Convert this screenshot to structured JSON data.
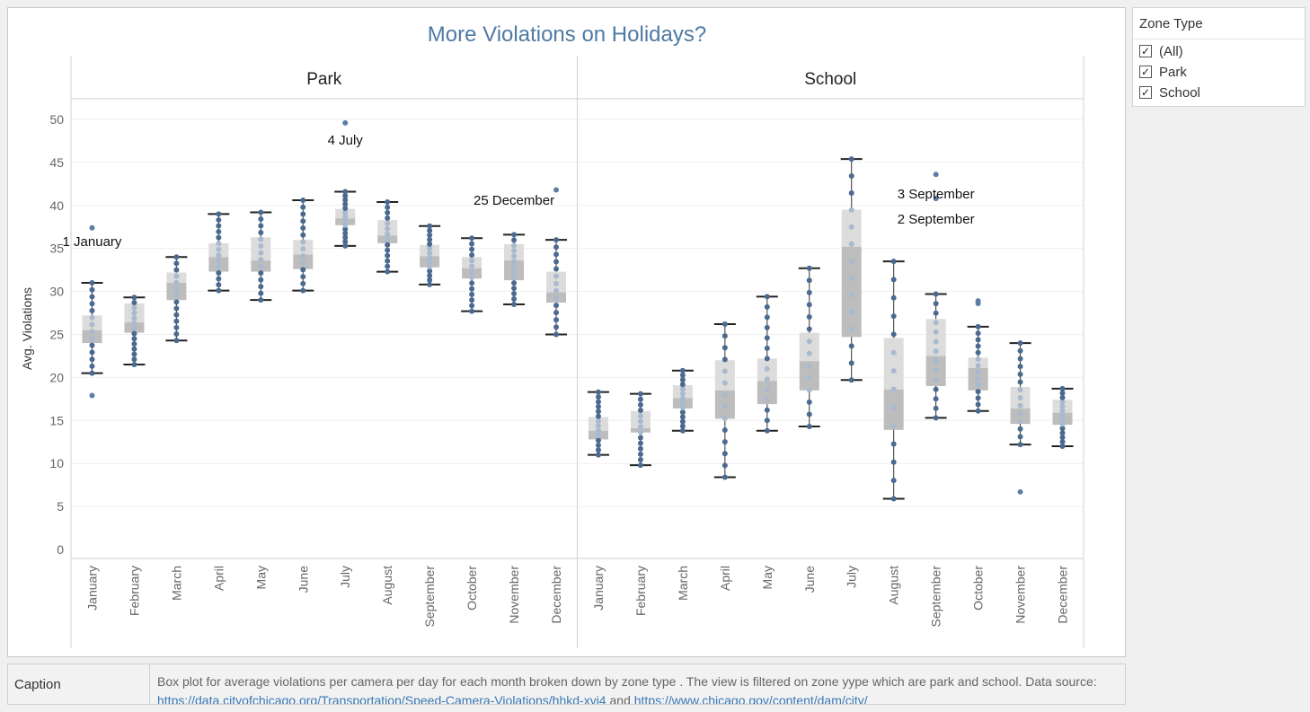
{
  "filter": {
    "title": "Zone Type",
    "options": [
      {
        "label": "(All)",
        "checked": true
      },
      {
        "label": "Park",
        "checked": true
      },
      {
        "label": "School",
        "checked": true
      }
    ]
  },
  "caption": {
    "label": "Caption",
    "text_1": "Box plot for average violations per camera per day for each month broken down by zone type . The view is filtered on zone yype which are park and school. Data source:",
    "link_1": "https://data.cityofchicago.org/Transportation/Speed-Camera-Violations/hhkd-xvj4",
    "text_2": "and",
    "link_2": "https://www.chicago.gov/content/dam/city/"
  },
  "colors": {
    "title": "#4f7aa3",
    "dot": "#4b6a8f",
    "dot_light": "#a9b9cf",
    "box_upper": "#dcdcdc",
    "box_lower": "#bdbdbd",
    "outlier": "#5d7fa6"
  },
  "chart_data": {
    "type": "box",
    "title": "More Violations on Holidays?",
    "ylabel": "Avg. Violations",
    "xlabel": "",
    "ylim": [
      0,
      52
    ],
    "yticks": [
      0,
      5,
      10,
      15,
      20,
      25,
      30,
      35,
      40,
      45,
      50
    ],
    "grid": true,
    "categories": [
      "January",
      "February",
      "March",
      "April",
      "May",
      "June",
      "July",
      "August",
      "September",
      "October",
      "November",
      "December"
    ],
    "panels": [
      {
        "name": "Park",
        "boxes": [
          {
            "min": 20.5,
            "q1": 24.0,
            "median": 25.5,
            "q3": 27.2,
            "max": 31.0
          },
          {
            "min": 21.5,
            "q1": 25.2,
            "median": 26.4,
            "q3": 28.6,
            "max": 29.3
          },
          {
            "min": 24.3,
            "q1": 29.0,
            "median": 31.0,
            "q3": 32.2,
            "max": 34.0
          },
          {
            "min": 30.1,
            "q1": 32.3,
            "median": 34.0,
            "q3": 35.6,
            "max": 39.0
          },
          {
            "min": 29.0,
            "q1": 32.3,
            "median": 33.6,
            "q3": 36.3,
            "max": 39.2
          },
          {
            "min": 30.1,
            "q1": 32.6,
            "median": 34.3,
            "q3": 36.0,
            "max": 40.6
          },
          {
            "min": 35.3,
            "q1": 37.7,
            "median": 38.5,
            "q3": 39.6,
            "max": 41.6
          },
          {
            "min": 32.3,
            "q1": 35.6,
            "median": 36.5,
            "q3": 38.3,
            "max": 40.4
          },
          {
            "min": 30.8,
            "q1": 32.8,
            "median": 34.1,
            "q3": 35.4,
            "max": 37.6
          },
          {
            "min": 27.7,
            "q1": 31.5,
            "median": 32.7,
            "q3": 34.0,
            "max": 36.2
          },
          {
            "min": 28.5,
            "q1": 31.3,
            "median": 33.6,
            "q3": 35.5,
            "max": 36.6
          },
          {
            "min": 25.0,
            "q1": 28.7,
            "median": 29.9,
            "q3": 32.3,
            "max": 36.0
          }
        ],
        "outliers": [
          {
            "month": "January",
            "y": 37.4
          },
          {
            "month": "January",
            "y": 17.9
          },
          {
            "month": "July",
            "y": 49.6
          },
          {
            "month": "December",
            "y": 41.8
          }
        ]
      },
      {
        "name": "School",
        "boxes": [
          {
            "min": 11.0,
            "q1": 12.8,
            "median": 13.8,
            "q3": 15.4,
            "max": 18.3
          },
          {
            "min": 9.8,
            "q1": 13.6,
            "median": 14.1,
            "q3": 16.1,
            "max": 18.1
          },
          {
            "min": 13.8,
            "q1": 16.4,
            "median": 17.6,
            "q3": 19.1,
            "max": 20.8
          },
          {
            "min": 8.4,
            "q1": 15.2,
            "median": 18.5,
            "q3": 22.0,
            "max": 26.2
          },
          {
            "min": 13.8,
            "q1": 16.9,
            "median": 19.6,
            "q3": 22.2,
            "max": 29.4
          },
          {
            "min": 14.3,
            "q1": 18.5,
            "median": 21.9,
            "q3": 25.2,
            "max": 32.7
          },
          {
            "min": 19.7,
            "q1": 24.7,
            "median": 35.2,
            "q3": 39.5,
            "max": 45.4
          },
          {
            "min": 5.9,
            "q1": 13.9,
            "median": 18.6,
            "q3": 24.6,
            "max": 33.5
          },
          {
            "min": 15.3,
            "q1": 19.0,
            "median": 22.5,
            "q3": 26.8,
            "max": 29.7
          },
          {
            "min": 16.1,
            "q1": 18.5,
            "median": 21.1,
            "q3": 22.3,
            "max": 25.9
          },
          {
            "min": 12.2,
            "q1": 14.6,
            "median": 16.4,
            "q3": 18.9,
            "max": 24.0
          },
          {
            "min": 12.0,
            "q1": 14.5,
            "median": 15.9,
            "q3": 17.4,
            "max": 18.7
          }
        ],
        "outliers": [
          {
            "month": "September",
            "y": 43.6
          },
          {
            "month": "September",
            "y": 40.8
          },
          {
            "month": "October",
            "y": 28.6
          },
          {
            "month": "October",
            "y": 28.9
          },
          {
            "month": "November",
            "y": 6.7
          }
        ]
      }
    ],
    "annotations": [
      {
        "panel": "Park",
        "month": "January",
        "y": 35.3,
        "text": "1 January"
      },
      {
        "panel": "Park",
        "month": "July",
        "y": 47.1,
        "text": "4 July"
      },
      {
        "panel": "Park",
        "month": "November",
        "y": 40.1,
        "text": "25 December"
      },
      {
        "panel": "School",
        "month": "September",
        "y": 40.8,
        "text": "3 September"
      },
      {
        "panel": "School",
        "month": "September",
        "y": 37.9,
        "text": "2 September"
      }
    ]
  }
}
